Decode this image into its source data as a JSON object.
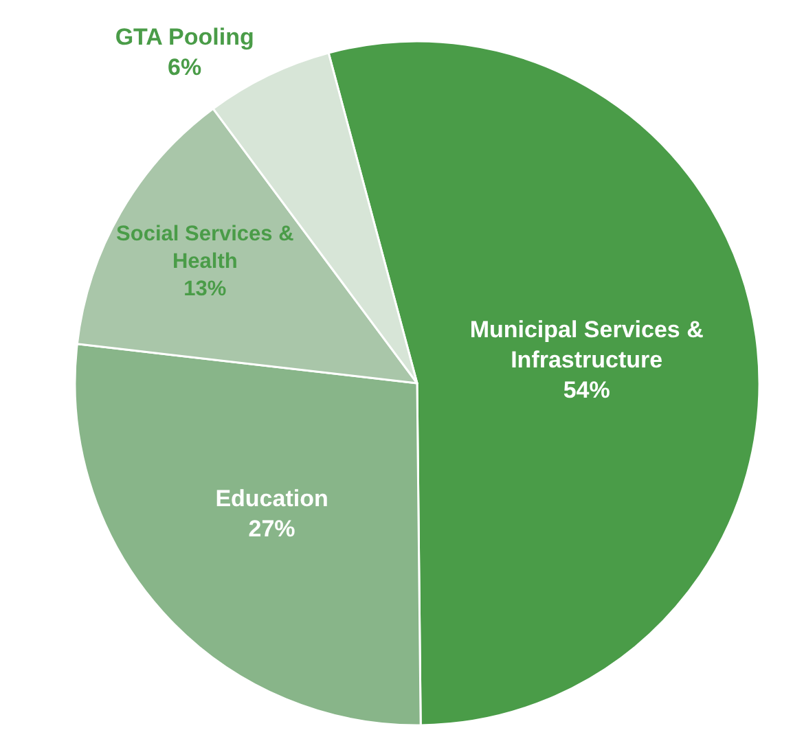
{
  "chart_data": {
    "type": "pie",
    "categories": [
      "Municipal Services & Infrastructure",
      "Education",
      "Social Services & Health",
      "GTA Pooling"
    ],
    "values": [
      54,
      27,
      13,
      6
    ],
    "value_labels": [
      "54%",
      "27%",
      "13%",
      "6%"
    ],
    "colors": [
      "#4a9c48",
      "#88b589",
      "#a9c6a9",
      "#d7e5d7"
    ],
    "legend": false
  }
}
